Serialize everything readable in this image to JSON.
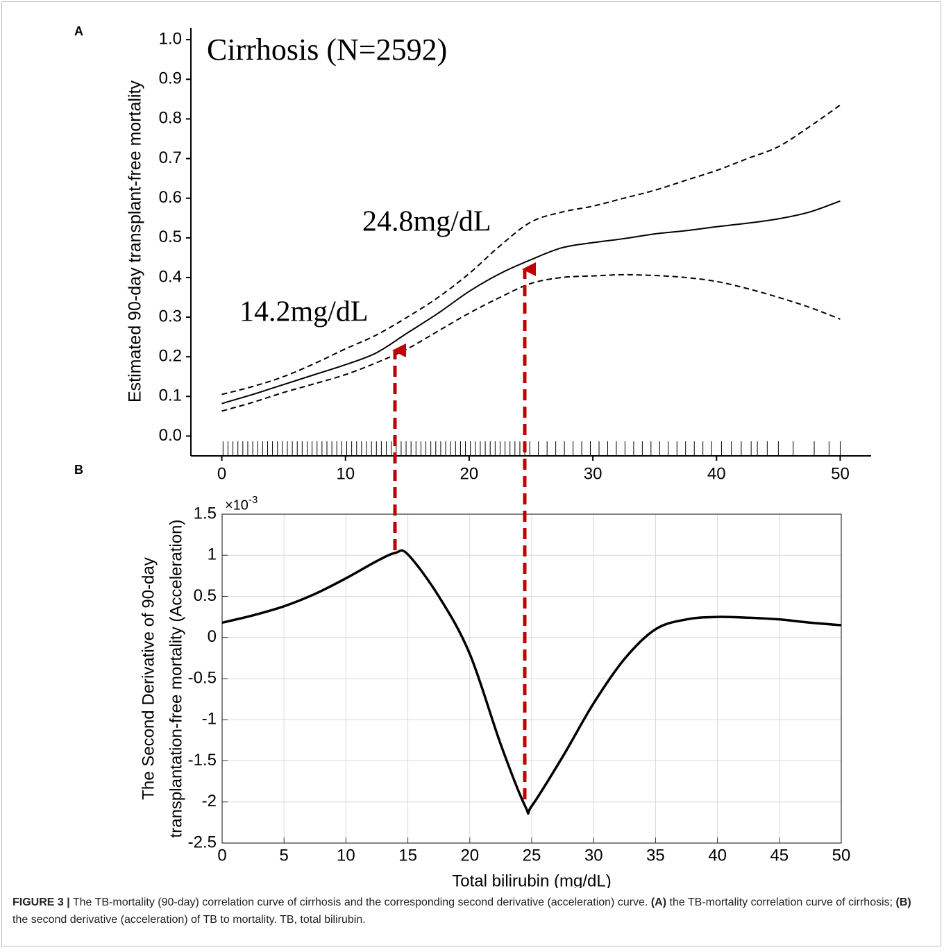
{
  "chart_data": [
    {
      "type": "line",
      "label": "A",
      "y_label": "Estimated 90-day transplant-free mortality",
      "annotations": [
        "Cirrhosis (N=2592)",
        "24.8mg/dL",
        "14.2mg/dL"
      ],
      "x": [
        0,
        2.5,
        5,
        7.5,
        10,
        12.5,
        15,
        17.5,
        20,
        22.5,
        25,
        27.5,
        30,
        32.5,
        35,
        37.5,
        40,
        42.5,
        45,
        47.5,
        50
      ],
      "series": [
        {
          "color": "#000000",
          "line_style": "solid",
          "values": [
            0.082,
            0.105,
            0.13,
            0.155,
            0.18,
            0.21,
            0.26,
            0.31,
            0.365,
            0.41,
            0.445,
            0.475,
            0.488,
            0.498,
            0.51,
            0.518,
            0.528,
            0.537,
            0.548,
            0.565,
            0.593
          ]
        },
        {
          "color": "#000000",
          "line_style": "dashed",
          "values": [
            0.105,
            0.125,
            0.15,
            0.183,
            0.22,
            0.255,
            0.3,
            0.35,
            0.41,
            0.48,
            0.54,
            0.565,
            0.58,
            0.6,
            0.62,
            0.645,
            0.67,
            0.7,
            0.73,
            0.78,
            0.835
          ]
        },
        {
          "color": "#000000",
          "line_style": "dashed",
          "values": [
            0.063,
            0.085,
            0.11,
            0.132,
            0.155,
            0.185,
            0.22,
            0.265,
            0.31,
            0.35,
            0.385,
            0.4,
            0.404,
            0.407,
            0.405,
            0.4,
            0.39,
            0.372,
            0.35,
            0.325,
            0.295
          ]
        }
      ],
      "rug": [
        0.1,
        0.5,
        0.9,
        1.3,
        1.7,
        2.1,
        2.5,
        2.9,
        3.3,
        3.7,
        4.1,
        4.5,
        4.9,
        5.3,
        5.7,
        6.1,
        6.5,
        6.9,
        7.3,
        7.7,
        8.1,
        8.5,
        8.9,
        9.3,
        9.7,
        10.1,
        10.5,
        10.9,
        11.3,
        11.7,
        12.1,
        12.5,
        12.9,
        13.3,
        13.7,
        14.1,
        14.5,
        14.9,
        15.3,
        15.7,
        16.1,
        16.5,
        16.9,
        17.3,
        17.7,
        18.1,
        18.5,
        18.9,
        19.3,
        19.7,
        20.1,
        20.5,
        20.9,
        21.3,
        21.7,
        22.1,
        22.5,
        22.9,
        23.3,
        23.7,
        24.1,
        24.5,
        24.9,
        25.6,
        26.3,
        27.0,
        27.7,
        28.4,
        29.1,
        29.8,
        30.5,
        31.2,
        31.9,
        32.6,
        33.3,
        34.0,
        34.7,
        35.4,
        36.1,
        36.8,
        37.5,
        38.2,
        38.9,
        39.6,
        40.4,
        41.2,
        42.0,
        42.8,
        43.3,
        44.1,
        45.0,
        46.2,
        47.9,
        49.1,
        50
      ],
      "xlim": [
        -2.5,
        52.5
      ],
      "ylim": [
        -0.05,
        1.03
      ],
      "xticks": [
        0,
        10,
        20,
        30,
        40,
        50
      ],
      "yticks": [
        {
          "value": 0,
          "label": "0.0"
        },
        0.1,
        0.2,
        0.3,
        0.4,
        0.5,
        0.6,
        0.7,
        0.8,
        0.9,
        {
          "value": 1,
          "label": "1.0"
        }
      ],
      "grid": false
    },
    {
      "type": "line",
      "label": "B",
      "y_label": [
        "The Second Derivative of 90-day",
        "transplantation-free mortality (Acceleration)"
      ],
      "x_label": "Total bilirubin (mg/dL)",
      "y_multiplier": {
        "base": "×10",
        "exponent": "-3"
      },
      "x": [
        0,
        2.5,
        5,
        7.5,
        10,
        12.5,
        14,
        15,
        17.5,
        20,
        22.5,
        24.5,
        25,
        27.5,
        30,
        32.5,
        35,
        37.5,
        40,
        42.5,
        45,
        47.5,
        50
      ],
      "series": [
        {
          "color": "#000000",
          "line_style": "solid",
          "values": [
            0.18,
            0.27,
            0.38,
            0.53,
            0.72,
            0.93,
            1.03,
            1.01,
            0.5,
            -0.2,
            -1.3,
            -2.06,
            -2.05,
            -1.45,
            -0.8,
            -0.26,
            0.1,
            0.22,
            0.25,
            0.24,
            0.22,
            0.18,
            0.15
          ]
        }
      ],
      "xlim": [
        0,
        50
      ],
      "ylim": [
        -2.5,
        1.5
      ],
      "xticks": [
        0,
        5,
        10,
        15,
        20,
        25,
        30,
        35,
        40,
        45,
        50
      ],
      "yticks": [
        -2.5,
        -2,
        -1.5,
        -1,
        -0.5,
        0,
        0.5,
        1,
        1.5
      ],
      "grid": true
    }
  ],
  "caption": [
    {
      "text": "FIGURE 3 |",
      "bold": true
    },
    {
      "text": " The TB-mortality (90-day) correlation curve of cirrhosis and the corresponding second derivative (acceleration) curve. ",
      "bold": false
    },
    {
      "text": "(A)",
      "bold": true
    },
    {
      "text": " the TB-mortality correlation curve of cirrhosis; ",
      "bold": false
    },
    {
      "text": "(B)",
      "bold": true
    },
    {
      "text": " the second derivative (acceleration) of TB to mortality. TB, total bilirubin.",
      "bold": false
    }
  ]
}
